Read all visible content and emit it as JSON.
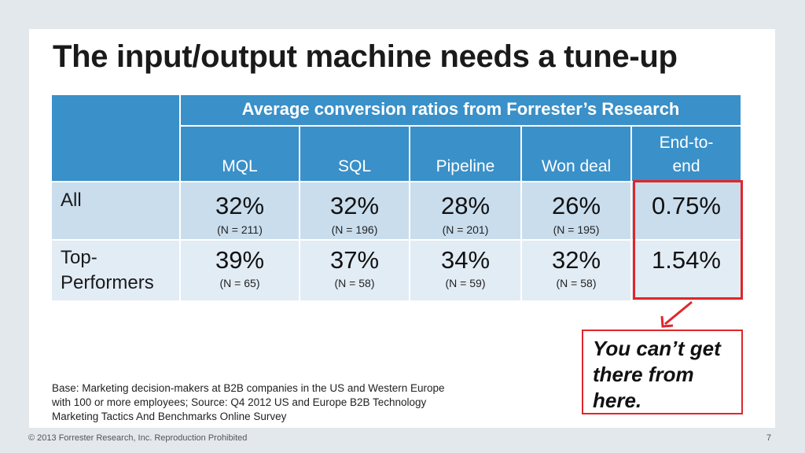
{
  "slide": {
    "title": "The input/output machine needs a tune-up",
    "page_number": "7",
    "copyright": "© 2013 Forrester Research, Inc. Reproduction Prohibited"
  },
  "table": {
    "banner": "Average conversion ratios from Forrester’s Research",
    "columns": [
      "MQL",
      "SQL",
      "Pipeline",
      "Won deal",
      "End-to-end"
    ],
    "end_to_end_line1": "End-to-",
    "end_to_end_line2": "end",
    "rows": [
      {
        "label": "All",
        "cells": [
          {
            "pct": "32%",
            "n": "(N = 211)"
          },
          {
            "pct": "32%",
            "n": "(N = 196)"
          },
          {
            "pct": "28%",
            "n": "(N = 201)"
          },
          {
            "pct": "26%",
            "n": "(N = 195)"
          },
          {
            "pct": "0.75%",
            "n": ""
          }
        ]
      },
      {
        "label_line1": "Top-",
        "label_line2": "Performers",
        "cells": [
          {
            "pct": "39%",
            "n": "(N = 65)"
          },
          {
            "pct": "37%",
            "n": "(N = 58)"
          },
          {
            "pct": "34%",
            "n": "(N = 59)"
          },
          {
            "pct": "32%",
            "n": "(N = 58)"
          },
          {
            "pct": "1.54%",
            "n": ""
          }
        ]
      }
    ]
  },
  "callout": {
    "line1": "You can’t get",
    "line2": "there from",
    "line3": "here."
  },
  "base_note": "Base: Marketing decision-makers at B2B companies in the US and Western Europe with 100 or more employees; Source: Q4 2012 US and Europe B2B Technology Marketing Tactics And Benchmarks Online Survey",
  "colors": {
    "header_blue": "#3a90c8",
    "row_light": "#c9dded",
    "row_lighter": "#e2ecf5",
    "highlight_red": "#e0262a"
  }
}
